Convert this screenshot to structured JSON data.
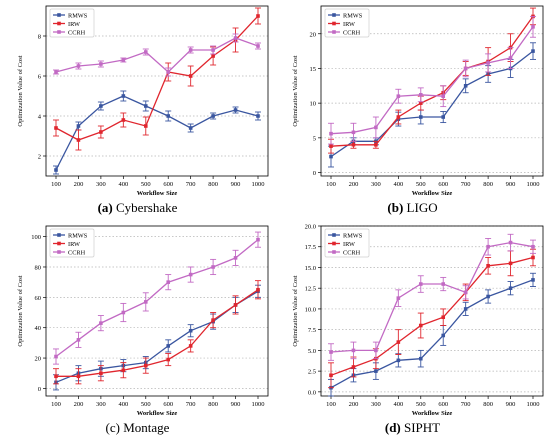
{
  "colors": {
    "RMWS": "#3a56a0",
    "IRW": "#e0262e",
    "CCRH": "#c26ac4"
  },
  "chart_data": [
    {
      "type": "line",
      "caption_letter": "(a)",
      "caption_name": "Cybershake",
      "xlabel": "Workflow Size",
      "ylabel": "Optimization Value of Cost",
      "x": [
        100,
        200,
        300,
        400,
        500,
        600,
        700,
        800,
        900,
        1000
      ],
      "ylim": [
        1,
        9.5
      ],
      "yticks": [
        2,
        4,
        6,
        8
      ],
      "legend": "top-left",
      "grid": "horizontal-dotted",
      "series": [
        {
          "name": "RMWS",
          "values": [
            1.3,
            3.5,
            4.5,
            5.0,
            4.5,
            4.0,
            3.4,
            4.0,
            4.3,
            4.0
          ],
          "errors": [
            0.2,
            0.2,
            0.2,
            0.25,
            0.25,
            0.25,
            0.2,
            0.15,
            0.15,
            0.2
          ]
        },
        {
          "name": "IRW",
          "values": [
            3.4,
            2.8,
            3.2,
            3.8,
            3.5,
            6.2,
            6.0,
            7.0,
            7.8,
            9.0
          ],
          "errors": [
            0.4,
            0.5,
            0.3,
            0.35,
            0.45,
            0.45,
            0.5,
            0.45,
            0.6,
            0.4
          ]
        },
        {
          "name": "CCRH",
          "values": [
            6.2,
            6.5,
            6.6,
            6.8,
            7.2,
            6.2,
            7.3,
            7.3,
            7.9,
            7.5
          ],
          "errors": [
            0.1,
            0.15,
            0.15,
            0.1,
            0.15,
            0.2,
            0.15,
            0.2,
            0.2,
            0.15
          ]
        }
      ]
    },
    {
      "type": "line",
      "caption_letter": "(b)",
      "caption_name": "LIGO",
      "xlabel": "Workflow Size",
      "ylabel": "Optimization Value of Cost",
      "x": [
        100,
        200,
        300,
        400,
        500,
        600,
        700,
        800,
        900,
        1000
      ],
      "ylim": [
        -0.5,
        24
      ],
      "yticks": [
        0,
        5,
        10,
        15,
        20
      ],
      "legend": "top-left",
      "grid": "horizontal-dotted",
      "series": [
        {
          "name": "RMWS",
          "values": [
            2.3,
            4.5,
            4.5,
            7.7,
            8.0,
            8.0,
            12.5,
            14.2,
            15.0,
            17.5
          ],
          "errors": [
            1.5,
            0.5,
            0.5,
            1.0,
            1.0,
            0.8,
            1.0,
            1.2,
            1.3,
            1.2
          ]
        },
        {
          "name": "IRW",
          "values": [
            3.8,
            4.0,
            4.0,
            8.0,
            10.0,
            11.5,
            15.0,
            16.0,
            18.0,
            22.5
          ],
          "errors": [
            1.0,
            0.5,
            0.5,
            1.0,
            1.0,
            1.0,
            1.0,
            2.0,
            2.0,
            1.2
          ]
        },
        {
          "name": "CCRH",
          "values": [
            5.6,
            5.8,
            6.5,
            11.0,
            11.2,
            11.0,
            15.0,
            15.8,
            16.5,
            21.0
          ],
          "errors": [
            1.5,
            1.3,
            1.5,
            1.0,
            1.0,
            1.5,
            1.2,
            1.3,
            1.5,
            1.5
          ]
        }
      ]
    },
    {
      "type": "line",
      "caption_letter": "(c)",
      "caption_name": "Montage",
      "xlabel": "Workflow Size",
      "ylabel": "Optimization Value of Cost",
      "x": [
        100,
        200,
        300,
        400,
        500,
        600,
        700,
        800,
        900,
        1000
      ],
      "ylim": [
        -5,
        107
      ],
      "yticks": [
        0,
        20,
        40,
        60,
        80,
        100
      ],
      "legend": "top-left",
      "grid": "horizontal-dotted",
      "series": [
        {
          "name": "RMWS",
          "values": [
            4,
            10,
            13,
            15,
            17,
            28,
            38,
            44,
            55,
            64
          ],
          "errors": [
            5,
            5,
            5,
            4,
            4,
            4,
            4,
            5,
            5,
            4
          ]
        },
        {
          "name": "IRW",
          "values": [
            8,
            8,
            10,
            12,
            15,
            19,
            28,
            45,
            55,
            65
          ],
          "errors": [
            5,
            5,
            5,
            5,
            5,
            4,
            4,
            5,
            6,
            6
          ]
        },
        {
          "name": "CCRH",
          "values": [
            21,
            32,
            43,
            50,
            57,
            70,
            75,
            80,
            86,
            98
          ],
          "errors": [
            5,
            5,
            5,
            6,
            6,
            5,
            5,
            5,
            5,
            5
          ]
        }
      ]
    },
    {
      "type": "line",
      "caption_letter": "(d)",
      "caption_name": "SIPHT",
      "xlabel": "Workflow Size",
      "ylabel": "Optimization Value of Cost",
      "x": [
        100,
        200,
        300,
        400,
        500,
        600,
        700,
        800,
        900,
        1000
      ],
      "ylim": [
        -0.5,
        20
      ],
      "yticks": [
        0.0,
        2.5,
        5.0,
        7.5,
        10.0,
        12.5,
        15.0,
        17.5,
        20.0
      ],
      "ytick_labels": [
        "0.0",
        "2.5",
        "5.0",
        "7.5",
        "10.0",
        "12.5",
        "15.0",
        "17.5",
        "20.0"
      ],
      "legend": "top-left",
      "grid": "horizontal-dotted",
      "series": [
        {
          "name": "RMWS",
          "values": [
            0.5,
            2.0,
            2.5,
            3.8,
            4.0,
            6.8,
            10.0,
            11.5,
            12.5,
            13.5
          ],
          "errors": [
            1.0,
            0.8,
            1.0,
            0.8,
            1.0,
            1.2,
            0.8,
            0.8,
            0.8,
            0.8
          ]
        },
        {
          "name": "IRW",
          "values": [
            2.0,
            3.0,
            4.0,
            6.0,
            8.0,
            9.0,
            12.0,
            15.2,
            15.5,
            16.2
          ],
          "errors": [
            1.5,
            1.2,
            1.2,
            1.5,
            1.5,
            1.0,
            1.0,
            1.0,
            1.5,
            1.0
          ]
        },
        {
          "name": "CCRH",
          "values": [
            4.8,
            5.0,
            5.0,
            11.3,
            13.0,
            13.0,
            12.0,
            17.5,
            18.0,
            17.5
          ],
          "errors": [
            1.0,
            1.0,
            1.0,
            1.0,
            1.0,
            0.8,
            0.8,
            1.0,
            1.0,
            0.8
          ]
        }
      ]
    }
  ]
}
